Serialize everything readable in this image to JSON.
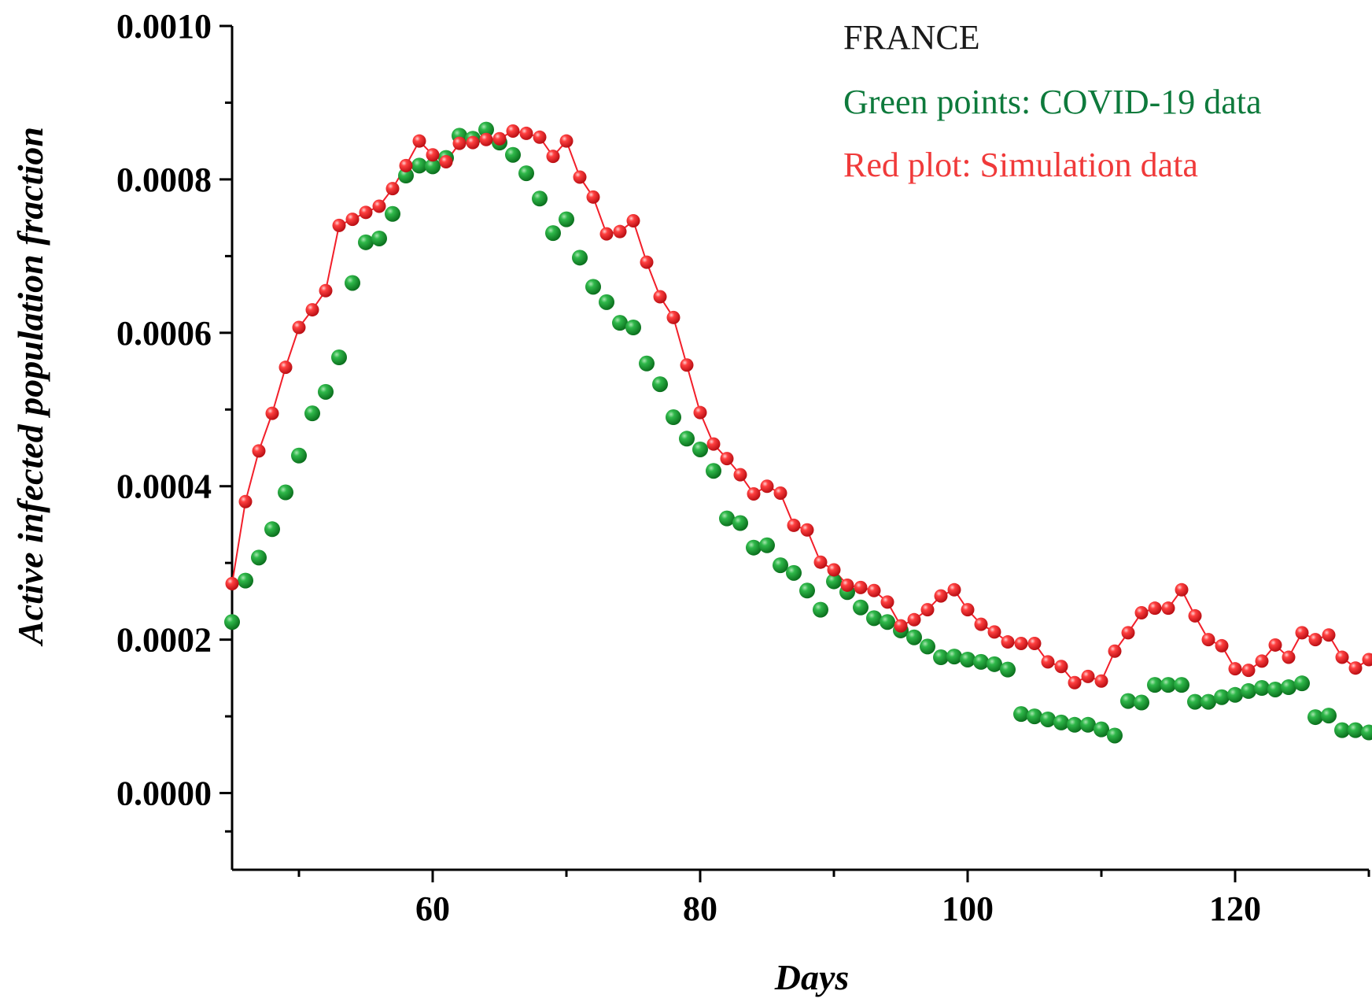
{
  "chart_data": {
    "type": "scatter",
    "title": "",
    "xlabel": "Days",
    "ylabel": "Active infected population fraction",
    "xlim": [
      45,
      130
    ],
    "ylim": [
      -0.0001,
      0.001
    ],
    "x_ticks": [
      60,
      80,
      100,
      120
    ],
    "x_tick_labels": [
      "60",
      "80",
      "100",
      "120"
    ],
    "y_ticks": [
      0.0,
      0.0002,
      0.0004,
      0.0006,
      0.0008,
      0.001
    ],
    "y_tick_labels": [
      "0.0000",
      "0.0002",
      "0.0004",
      "0.0006",
      "0.0008",
      "0.0010"
    ],
    "grid": false,
    "annotations": [
      {
        "text": "FRANCE",
        "color": "#1a1a1a"
      },
      {
        "text": "Green points: COVID-19 data",
        "color": "#0e7a3c"
      },
      {
        "text": "Red plot: Simulation data",
        "color": "#f03a3a"
      }
    ],
    "series": [
      {
        "name": "COVID-19 data",
        "color": "#119a2b",
        "style": "points",
        "x": [
          45,
          46,
          47,
          48,
          49,
          50,
          51,
          52,
          53,
          54,
          55,
          56,
          57,
          58,
          59,
          60,
          61,
          62,
          63,
          64,
          65,
          66,
          67,
          68,
          69,
          70,
          71,
          72,
          73,
          74,
          75,
          76,
          77,
          78,
          79,
          80,
          81,
          82,
          83,
          84,
          85,
          86,
          87,
          88,
          89,
          90,
          91,
          92,
          93,
          94,
          95,
          96,
          97,
          98,
          99,
          100,
          101,
          102,
          103,
          104,
          105,
          106,
          107,
          108,
          109,
          110,
          111,
          112,
          113,
          114,
          115,
          116,
          117,
          118,
          119,
          120,
          121,
          122,
          123,
          124,
          125,
          126,
          127,
          128,
          129,
          130
        ],
        "values": [
          0.000223,
          0.000277,
          0.000307,
          0.000344,
          0.000392,
          0.00044,
          0.000495,
          0.000523,
          0.000568,
          0.000665,
          0.000718,
          0.000723,
          0.000755,
          0.000805,
          0.000818,
          0.000817,
          0.000828,
          0.000857,
          0.000853,
          0.000865,
          0.000848,
          0.000832,
          0.000808,
          0.000775,
          0.00073,
          0.000748,
          0.000698,
          0.00066,
          0.00064,
          0.000613,
          0.000607,
          0.00056,
          0.000533,
          0.00049,
          0.000462,
          0.000448,
          0.00042,
          0.000358,
          0.000352,
          0.00032,
          0.000323,
          0.000297,
          0.000287,
          0.000264,
          0.000239,
          0.000276,
          0.000262,
          0.000242,
          0.000228,
          0.000223,
          0.000212,
          0.000203,
          0.000191,
          0.000177,
          0.000178,
          0.000174,
          0.000171,
          0.000168,
          0.000161,
          0.000103,
          0.0001,
          9.6e-05,
          9.2e-05,
          8.9e-05,
          8.9e-05,
          8.3e-05,
          7.5e-05,
          0.00012,
          0.000118,
          0.000141,
          0.000141,
          0.000141,
          0.000119,
          0.000119,
          0.000125,
          0.000128,
          0.000133,
          0.000137,
          0.000135,
          0.000138,
          0.000143,
          9.9e-05,
          0.000101,
          8.2e-05,
          8.2e-05,
          7.9e-05
        ]
      },
      {
        "name": "Simulation data",
        "color": "#f21f2a",
        "style": "line-points",
        "x": [
          45,
          46,
          47,
          48,
          49,
          50,
          51,
          52,
          53,
          54,
          55,
          56,
          57,
          58,
          59,
          60,
          61,
          62,
          63,
          64,
          65,
          66,
          67,
          68,
          69,
          70,
          71,
          72,
          73,
          74,
          75,
          76,
          77,
          78,
          79,
          80,
          81,
          82,
          83,
          84,
          85,
          86,
          87,
          88,
          89,
          90,
          91,
          92,
          93,
          94,
          95,
          96,
          97,
          98,
          99,
          100,
          101,
          102,
          103,
          104,
          105,
          106,
          107,
          108,
          109,
          110,
          111,
          112,
          113,
          114,
          115,
          116,
          117,
          118,
          119,
          120,
          121,
          122,
          123,
          124,
          125,
          126,
          127,
          128,
          129,
          130
        ],
        "values": [
          0.000273,
          0.00038,
          0.000446,
          0.000495,
          0.000555,
          0.000607,
          0.00063,
          0.000655,
          0.00074,
          0.000748,
          0.000757,
          0.000765,
          0.000788,
          0.000818,
          0.00085,
          0.000832,
          0.000823,
          0.000847,
          0.000848,
          0.000852,
          0.000853,
          0.000863,
          0.00086,
          0.000855,
          0.00083,
          0.00085,
          0.000803,
          0.000777,
          0.000729,
          0.000732,
          0.000746,
          0.000692,
          0.000647,
          0.00062,
          0.000558,
          0.000496,
          0.000455,
          0.000436,
          0.000415,
          0.00039,
          0.0004,
          0.000391,
          0.000349,
          0.000343,
          0.000301,
          0.000291,
          0.000271,
          0.000268,
          0.000264,
          0.000249,
          0.000218,
          0.000226,
          0.000239,
          0.000257,
          0.000265,
          0.000239,
          0.00022,
          0.00021,
          0.000197,
          0.000195,
          0.000195,
          0.000171,
          0.000165,
          0.000144,
          0.000152,
          0.000146,
          0.000185,
          0.000209,
          0.000235,
          0.000241,
          0.000241,
          0.000265,
          0.000231,
          0.0002,
          0.000192,
          0.000162,
          0.00016,
          0.000172,
          0.000193,
          0.000177,
          0.000209,
          0.0002,
          0.000206,
          0.000177,
          0.000163,
          0.000174
        ]
      }
    ]
  }
}
